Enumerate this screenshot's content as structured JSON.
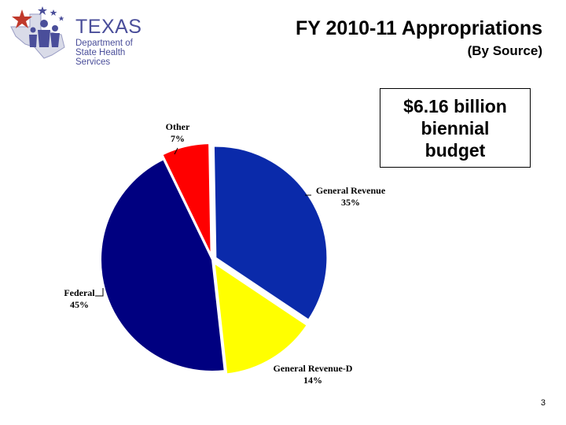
{
  "header": {
    "logo": {
      "name": "TEXAS",
      "subtitle_line1": "Department of",
      "subtitle_line2": "State Health Services",
      "icon": "texas-star-people-icon"
    },
    "title": "FY 2010-11 Appropriations",
    "subtitle": "(By Source)"
  },
  "callout": {
    "line1": "$6.16 billion",
    "line2": "biennial",
    "line3": "budget"
  },
  "chart_data": {
    "type": "pie",
    "slices": [
      {
        "label": "General Revenue",
        "pct_text": "35%",
        "value": 35,
        "color": "#0a2aaa"
      },
      {
        "label": "General Revenue-D",
        "pct_text": "14%",
        "value": 14,
        "color": "#ffff00"
      },
      {
        "label": "Federal",
        "pct_text": "45%",
        "value": 45,
        "color": "#000080"
      },
      {
        "label": "Other",
        "pct_text": "7%",
        "value": 7,
        "color": "#ff0000"
      }
    ]
  },
  "footer": {
    "page_number": "3"
  },
  "colors": {
    "logo_blue": "#4a4e9a",
    "logo_red": "#c0392b"
  }
}
